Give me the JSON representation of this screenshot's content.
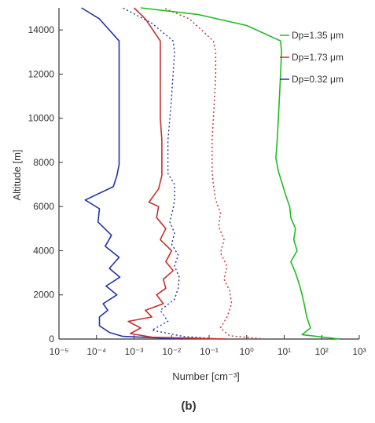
{
  "chart_data": {
    "type": "line",
    "panel_label": "(b)",
    "xlabel": "Number [cm⁻³]",
    "ylabel": "Altitude [m]",
    "x_scale": "log",
    "xlim": [
      1e-05,
      1000
    ],
    "ylim": [
      0,
      15000
    ],
    "x_ticks": [
      1e-05,
      0.0001,
      0.001,
      0.01,
      0.1,
      1,
      10,
      100,
      1000
    ],
    "x_tick_labels": [
      "10⁻⁵",
      "10⁻⁴",
      "10⁻³",
      "10⁻²",
      "10⁻¹",
      "10⁰",
      "10¹",
      "10²",
      "10³"
    ],
    "y_ticks": [
      0,
      2000,
      4000,
      6000,
      8000,
      10000,
      12000,
      14000
    ],
    "y_tick_labels": [
      "0",
      "2000",
      "4000",
      "6000",
      "8000",
      "10000",
      "12000",
      "14000"
    ],
    "legend_position": "top-right",
    "legend": [
      "Dp=1.35 μm",
      "Dp=1.73 μm",
      "Dp=0.32 μm"
    ],
    "colors": {
      "green": "#22bb22",
      "red": "#c43030",
      "blue": "#2233aa",
      "axis": "#333333"
    },
    "series": [
      {
        "color": "#2233aa",
        "style": "solid",
        "points": [
          [
            0.02,
            0
          ],
          [
            0.0005,
            120
          ],
          [
            0.00022,
            300
          ],
          [
            0.00012,
            600
          ],
          [
            0.00012,
            1000
          ],
          [
            0.0002,
            1300
          ],
          [
            0.00015,
            1600
          ],
          [
            0.00035,
            2000
          ],
          [
            0.00018,
            2400
          ],
          [
            0.00042,
            2800
          ],
          [
            0.00022,
            3200
          ],
          [
            0.0004,
            3700
          ],
          [
            0.00017,
            4200
          ],
          [
            0.00025,
            4700
          ],
          [
            0.00011,
            5300
          ],
          [
            0.00012,
            5900
          ],
          [
            5e-05,
            6300
          ],
          [
            0.00028,
            6900
          ],
          [
            0.00035,
            7400
          ],
          [
            0.0004,
            7900
          ],
          [
            0.0004,
            8300
          ],
          [
            0.0004,
            9000
          ],
          [
            0.0004,
            10000
          ],
          [
            0.0004,
            11000
          ],
          [
            0.0004,
            12000
          ],
          [
            0.0004,
            13000
          ],
          [
            0.0004,
            13500
          ],
          [
            0.00012,
            14500
          ],
          [
            4e-05,
            15000
          ]
        ]
      },
      {
        "color": "#2233aa",
        "style": "dotted",
        "points": [
          [
            0.2,
            0
          ],
          [
            0.02,
            120
          ],
          [
            0.003,
            400
          ],
          [
            0.008,
            800
          ],
          [
            0.005,
            1300
          ],
          [
            0.012,
            1800
          ],
          [
            0.015,
            2300
          ],
          [
            0.016,
            2800
          ],
          [
            0.012,
            3300
          ],
          [
            0.015,
            3800
          ],
          [
            0.01,
            4300
          ],
          [
            0.012,
            4800
          ],
          [
            0.009,
            5300
          ],
          [
            0.011,
            5900
          ],
          [
            0.012,
            6300
          ],
          [
            0.012,
            7000
          ],
          [
            0.008,
            7500
          ],
          [
            0.008,
            8200
          ],
          [
            0.008,
            9000
          ],
          [
            0.009,
            10000
          ],
          [
            0.01,
            11000
          ],
          [
            0.011,
            12000
          ],
          [
            0.012,
            13000
          ],
          [
            0.011,
            13500
          ],
          [
            0.003,
            14300
          ],
          [
            0.0005,
            15000
          ]
        ]
      },
      {
        "color": "#c43030",
        "style": "solid",
        "points": [
          [
            0.3,
            0
          ],
          [
            0.003,
            80
          ],
          [
            0.0008,
            250
          ],
          [
            0.0015,
            500
          ],
          [
            0.0007,
            800
          ],
          [
            0.003,
            1000
          ],
          [
            0.002,
            1300
          ],
          [
            0.006,
            1600
          ],
          [
            0.004,
            2000
          ],
          [
            0.007,
            2300
          ],
          [
            0.006,
            2700
          ],
          [
            0.011,
            3100
          ],
          [
            0.007,
            3500
          ],
          [
            0.01,
            4000
          ],
          [
            0.005,
            4500
          ],
          [
            0.007,
            5000
          ],
          [
            0.004,
            5500
          ],
          [
            0.0045,
            6000
          ],
          [
            0.0025,
            6200
          ],
          [
            0.0045,
            6800
          ],
          [
            0.0055,
            7400
          ],
          [
            0.0055,
            8000
          ],
          [
            0.0055,
            9000
          ],
          [
            0.005,
            10000
          ],
          [
            0.005,
            11000
          ],
          [
            0.005,
            12000
          ],
          [
            0.005,
            13000
          ],
          [
            0.005,
            13500
          ],
          [
            0.002,
            14500
          ],
          [
            0.001,
            15000
          ]
        ]
      },
      {
        "color": "#c43030",
        "style": "dotted",
        "points": [
          [
            3,
            0
          ],
          [
            0.35,
            150
          ],
          [
            0.2,
            500
          ],
          [
            0.3,
            1000
          ],
          [
            0.4,
            1600
          ],
          [
            0.35,
            2200
          ],
          [
            0.25,
            2700
          ],
          [
            0.3,
            3300
          ],
          [
            0.2,
            3900
          ],
          [
            0.25,
            4500
          ],
          [
            0.18,
            5100
          ],
          [
            0.2,
            5700
          ],
          [
            0.15,
            6300
          ],
          [
            0.13,
            7000
          ],
          [
            0.12,
            7600
          ],
          [
            0.12,
            8200
          ],
          [
            0.12,
            9000
          ],
          [
            0.13,
            10000
          ],
          [
            0.14,
            11000
          ],
          [
            0.15,
            12000
          ],
          [
            0.15,
            13000
          ],
          [
            0.13,
            13500
          ],
          [
            0.03,
            14500
          ],
          [
            0.006,
            15000
          ]
        ]
      },
      {
        "color": "#22bb22",
        "style": "solid",
        "points": [
          [
            300,
            0
          ],
          [
            30,
            200
          ],
          [
            50,
            500
          ],
          [
            40,
            1000
          ],
          [
            35,
            1500
          ],
          [
            30,
            2000
          ],
          [
            25,
            2500
          ],
          [
            20,
            3000
          ],
          [
            15,
            3500
          ],
          [
            22,
            4000
          ],
          [
            18,
            4500
          ],
          [
            20,
            5000
          ],
          [
            15,
            5500
          ],
          [
            14,
            6000
          ],
          [
            11,
            6500
          ],
          [
            9,
            7000
          ],
          [
            7,
            7600
          ],
          [
            6,
            8200
          ],
          [
            6.5,
            9000
          ],
          [
            7,
            10000
          ],
          [
            7.5,
            11000
          ],
          [
            8,
            12000
          ],
          [
            8.5,
            13000
          ],
          [
            8,
            13500
          ],
          [
            1,
            14200
          ],
          [
            0.05,
            14700
          ],
          [
            0.0015,
            15000
          ]
        ]
      }
    ]
  }
}
